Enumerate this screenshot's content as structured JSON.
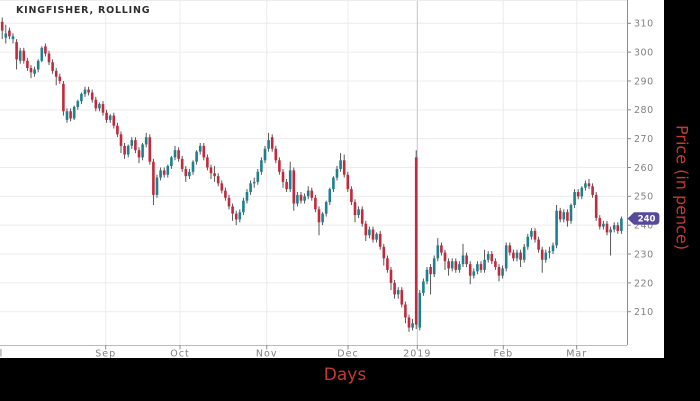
{
  "header": {
    "title": "KINGFISHER, ROLLING"
  },
  "axes": {
    "x_label": "Days",
    "y_label": "Price (in pence)",
    "y_ticks": [
      310,
      300,
      290,
      280,
      270,
      260,
      250,
      240,
      230,
      220,
      210
    ],
    "x_ticks": [
      {
        "label": "Jul",
        "x": -4,
        "grid": false,
        "strong": false
      },
      {
        "label": "Sep",
        "x": 105.7,
        "grid": true,
        "strong": false
      },
      {
        "label": "Oct",
        "x": 180,
        "grid": true,
        "strong": false
      },
      {
        "label": "Nov",
        "x": 266.7,
        "grid": true,
        "strong": false
      },
      {
        "label": "Dec",
        "x": 348,
        "grid": true,
        "strong": false
      },
      {
        "label": "2019",
        "x": 417.3,
        "grid": true,
        "strong": true
      },
      {
        "label": "Feb",
        "x": 503.3,
        "grid": true,
        "strong": false
      },
      {
        "label": "Mar",
        "x": 576.7,
        "grid": true,
        "strong": false
      }
    ]
  },
  "price_badge": {
    "label": "240",
    "value": 242.3,
    "color": "#574a9c",
    "text_color": "#ffffff"
  },
  "colors": {
    "up": "#1d808e",
    "down": "#c3293a",
    "wick": "#444444",
    "grid": "#ececec",
    "grid_strong": "#c4c4c4",
    "axis_line": "#8c8c8c",
    "baseline": "#bbbbbb",
    "tick_text": "#808080",
    "accent_red": "#c43b30",
    "frame": "#000000",
    "title_text": "#2e2e2e"
  },
  "chart_data": {
    "type": "candlestick",
    "title": "KINGFISHER, ROLLING",
    "xlabel": "Days",
    "ylabel": "Price (in pence)",
    "ylim": [
      198,
      318
    ],
    "grid": true,
    "x_tick_labels": [
      "Jul",
      "Sep",
      "Oct",
      "Nov",
      "Dec",
      "2019",
      "Feb",
      "Mar"
    ],
    "last_price_marker": 240,
    "candles_format": [
      "open",
      "high",
      "low",
      "close"
    ],
    "candles": [
      [
        310.5,
        312,
        304.5,
        307.5
      ],
      [
        305,
        309.5,
        303,
        306.5
      ],
      [
        307.5,
        308.5,
        304.5,
        305.5
      ],
      [
        304.5,
        306.5,
        303,
        305.5
      ],
      [
        303.5,
        304.5,
        294,
        297.5
      ],
      [
        297,
        301.5,
        296,
        300.5
      ],
      [
        300.5,
        301.5,
        296,
        297
      ],
      [
        297,
        298,
        293.5,
        294.5
      ],
      [
        294.5,
        295.5,
        291,
        293
      ],
      [
        292.5,
        295,
        291.5,
        294
      ],
      [
        294,
        297.5,
        293,
        297
      ],
      [
        297,
        302,
        296.5,
        301.5
      ],
      [
        302,
        303,
        298.5,
        299.5
      ],
      [
        299.5,
        300.5,
        295.5,
        296.5
      ],
      [
        296.5,
        297.5,
        292.5,
        293.5
      ],
      [
        293.5,
        294.5,
        288.5,
        291.5
      ],
      [
        291.5,
        292.5,
        289,
        290
      ],
      [
        289,
        290,
        278,
        279.5
      ],
      [
        276.5,
        280.5,
        275.5,
        279.5
      ],
      [
        279.5,
        280.5,
        276,
        277
      ],
      [
        277,
        281.5,
        276.5,
        281
      ],
      [
        281,
        283.5,
        280,
        283
      ],
      [
        283,
        286,
        282,
        285.5
      ],
      [
        285.5,
        288,
        284.5,
        287
      ],
      [
        287,
        288,
        285,
        286
      ],
      [
        286,
        287,
        282.5,
        283.5
      ],
      [
        283.5,
        284.5,
        279.5,
        280.5
      ],
      [
        280.5,
        282.5,
        279.5,
        282
      ],
      [
        282,
        283,
        278,
        279
      ],
      [
        279,
        280,
        275.5,
        276.5
      ],
      [
        276.5,
        278.5,
        275.5,
        278
      ],
      [
        278,
        279,
        273.5,
        274.5
      ],
      [
        274.5,
        275.5,
        270.5,
        271.5
      ],
      [
        271.5,
        272.5,
        265,
        267.5
      ],
      [
        267.5,
        268.5,
        263,
        264.5
      ],
      [
        264.5,
        268,
        263.5,
        267.5
      ],
      [
        267.5,
        270.5,
        266.5,
        269.5
      ],
      [
        269.5,
        270.5,
        265,
        266
      ],
      [
        266,
        267,
        261.5,
        263.5
      ],
      [
        263.5,
        268.5,
        262.5,
        268
      ],
      [
        268,
        272,
        267,
        270.5
      ],
      [
        270.5,
        271.5,
        261,
        262
      ],
      [
        262,
        263,
        247,
        250.5
      ],
      [
        250.5,
        257.5,
        249.5,
        256.5
      ],
      [
        256.5,
        260,
        255.5,
        259
      ],
      [
        259,
        260,
        256.5,
        257.5
      ],
      [
        257.5,
        261,
        256.5,
        260.5
      ],
      [
        260.5,
        264,
        259.5,
        263.5
      ],
      [
        263.5,
        267.5,
        262.5,
        266
      ],
      [
        266,
        267,
        262,
        263
      ],
      [
        263,
        264,
        258.5,
        259.5
      ],
      [
        259.5,
        260.5,
        255,
        257
      ],
      [
        257,
        259.5,
        256,
        258.5
      ],
      [
        258.5,
        262.5,
        257.5,
        262
      ],
      [
        262,
        266,
        261,
        265.5
      ],
      [
        265.5,
        268.5,
        264.5,
        267.5
      ],
      [
        267.5,
        268.5,
        262.5,
        263.5
      ],
      [
        263.5,
        264.5,
        259,
        260
      ],
      [
        260,
        261,
        256,
        258
      ],
      [
        258,
        260.5,
        255,
        257
      ],
      [
        257,
        258,
        253.5,
        254.5
      ],
      [
        254.5,
        255.5,
        251,
        252
      ],
      [
        252,
        253,
        248.5,
        249.5
      ],
      [
        249.5,
        250.5,
        245.5,
        246.5
      ],
      [
        246.5,
        247.5,
        241.5,
        244
      ],
      [
        244,
        245,
        240,
        242
      ],
      [
        242,
        245.5,
        241,
        244.5
      ],
      [
        244.5,
        249.5,
        243.5,
        248.5
      ],
      [
        248.5,
        252.5,
        247.5,
        251.5
      ],
      [
        251.5,
        255.5,
        250.5,
        254.5
      ],
      [
        254.5,
        256.5,
        253,
        255
      ],
      [
        255,
        259.5,
        254,
        258.5
      ],
      [
        258.5,
        263.5,
        257.5,
        262.5
      ],
      [
        262.5,
        267.5,
        261.5,
        266.5
      ],
      [
        266.5,
        272,
        265.5,
        269.5
      ],
      [
        270.5,
        271.5,
        265.5,
        266.5
      ],
      [
        266.5,
        267.5,
        261.5,
        262.5
      ],
      [
        262.5,
        263.5,
        257.5,
        258.5
      ],
      [
        258.5,
        259.5,
        253,
        255
      ],
      [
        255,
        256,
        251.5,
        252.5
      ],
      [
        252.5,
        262,
        251.5,
        259
      ],
      [
        259,
        260,
        245,
        247.5
      ],
      [
        247.5,
        251.5,
        246.5,
        250.5
      ],
      [
        250.5,
        251.5,
        247.5,
        248.5
      ],
      [
        248.5,
        251,
        247.5,
        250
      ],
      [
        250,
        253.5,
        249,
        252
      ],
      [
        252,
        253,
        248.5,
        249.5
      ],
      [
        249.5,
        250.5,
        244.5,
        245.5
      ],
      [
        245.5,
        246.5,
        236.5,
        241
      ],
      [
        241,
        244.5,
        240,
        244
      ],
      [
        244,
        248.5,
        243,
        248
      ],
      [
        248,
        253,
        247,
        252.5
      ],
      [
        252.5,
        257,
        251.5,
        256.5
      ],
      [
        256.5,
        260.5,
        255.5,
        259.5
      ],
      [
        259.5,
        265,
        258.5,
        262.5
      ],
      [
        262.5,
        264.5,
        256.5,
        257.5
      ],
      [
        257.5,
        258.5,
        251.5,
        252.5
      ],
      [
        252.5,
        253.5,
        247,
        248
      ],
      [
        248,
        249,
        241,
        243.5
      ],
      [
        243.5,
        246.5,
        242.5,
        245.5
      ],
      [
        245.5,
        246.5,
        239.5,
        240.5
      ],
      [
        240.5,
        241.5,
        234.5,
        236.5
      ],
      [
        236.5,
        239.5,
        235.5,
        238.5
      ],
      [
        238.5,
        239.5,
        234,
        235
      ],
      [
        235,
        237.5,
        234,
        237
      ],
      [
        237,
        238,
        231.5,
        232.5
      ],
      [
        232.5,
        233.5,
        226,
        228.5
      ],
      [
        228.5,
        229.5,
        223.5,
        224.5
      ],
      [
        224.5,
        225.5,
        217.5,
        220
      ],
      [
        220,
        221,
        214.5,
        216
      ],
      [
        216,
        218.5,
        214.5,
        217.5
      ],
      [
        217.5,
        218.5,
        211.5,
        212.5
      ],
      [
        212.5,
        213.5,
        206,
        208
      ],
      [
        208,
        209,
        203,
        204.5
      ],
      [
        204.5,
        207.5,
        203.5,
        206
      ],
      [
        263.5,
        266,
        204,
        205.5
      ],
      [
        204.5,
        217.5,
        203.5,
        216.5
      ],
      [
        216.5,
        221.5,
        215.5,
        220.5
      ],
      [
        220.5,
        225.5,
        219.5,
        224.5
      ],
      [
        225.5,
        226.5,
        216,
        223
      ],
      [
        223,
        229.5,
        222,
        228.5
      ],
      [
        228.5,
        235.5,
        227.5,
        233
      ],
      [
        233,
        234,
        229.5,
        230.5
      ],
      [
        230.5,
        231.5,
        224.5,
        227.5
      ],
      [
        227.5,
        228.5,
        222.5,
        225
      ],
      [
        225,
        228.5,
        224,
        227.5
      ],
      [
        227.5,
        228.5,
        223.5,
        224.5
      ],
      [
        224.5,
        227.5,
        223.5,
        226.5
      ],
      [
        226.5,
        233.5,
        225.5,
        229.5
      ],
      [
        229.5,
        230.5,
        225.5,
        226.5
      ],
      [
        226.5,
        227.5,
        219.5,
        222.5
      ],
      [
        222.5,
        225,
        221.5,
        224
      ],
      [
        224,
        227.5,
        223,
        226.5
      ],
      [
        226.5,
        227.5,
        223.5,
        224.5
      ],
      [
        224.5,
        231.5,
        223.5,
        228
      ],
      [
        228,
        231,
        227,
        230
      ],
      [
        230,
        231,
        226.5,
        227.5
      ],
      [
        227.5,
        228.5,
        224.5,
        225.5
      ],
      [
        225.5,
        226.5,
        220.5,
        222.5
      ],
      [
        222.5,
        226,
        221.5,
        225
      ],
      [
        225,
        234,
        224,
        233
      ],
      [
        233,
        234,
        229.5,
        230.5
      ],
      [
        230.5,
        231.5,
        227.5,
        228.5
      ],
      [
        228.5,
        231.5,
        227.5,
        230.5
      ],
      [
        230.5,
        231.5,
        225.5,
        228
      ],
      [
        228,
        233.5,
        227,
        232.5
      ],
      [
        232.5,
        237,
        231.5,
        236
      ],
      [
        236,
        239,
        235,
        238
      ],
      [
        238,
        239,
        234,
        235
      ],
      [
        235,
        236,
        230.5,
        231.5
      ],
      [
        231.5,
        232.5,
        223.5,
        228
      ],
      [
        228,
        231.5,
        227,
        230.5
      ],
      [
        230.5,
        232.5,
        228.5,
        231
      ],
      [
        231,
        234,
        230,
        233
      ],
      [
        233,
        247,
        232,
        245
      ],
      [
        245,
        246,
        241,
        242
      ],
      [
        242,
        245.5,
        241,
        244.5
      ],
      [
        244.5,
        245.5,
        239.5,
        241.5
      ],
      [
        241.5,
        247.5,
        240.5,
        247
      ],
      [
        247,
        252.5,
        246,
        251.5
      ],
      [
        251.5,
        252.5,
        249,
        250
      ],
      [
        250,
        253.5,
        249,
        253
      ],
      [
        253,
        255.5,
        252,
        254.5
      ],
      [
        254.5,
        256,
        252.5,
        253.5
      ],
      [
        253.5,
        254.5,
        249.5,
        250.5
      ],
      [
        250.5,
        251.5,
        241.5,
        242.5
      ],
      [
        242.5,
        243.5,
        238.5,
        239.5
      ],
      [
        239.5,
        241.5,
        238.5,
        240.5
      ],
      [
        240.5,
        241.5,
        236.5,
        237.5
      ],
      [
        237.5,
        239.5,
        229.5,
        238.5
      ],
      [
        238.5,
        241,
        237.5,
        240
      ],
      [
        240,
        241,
        237,
        238
      ],
      [
        238,
        243,
        237,
        242.3
      ]
    ]
  }
}
